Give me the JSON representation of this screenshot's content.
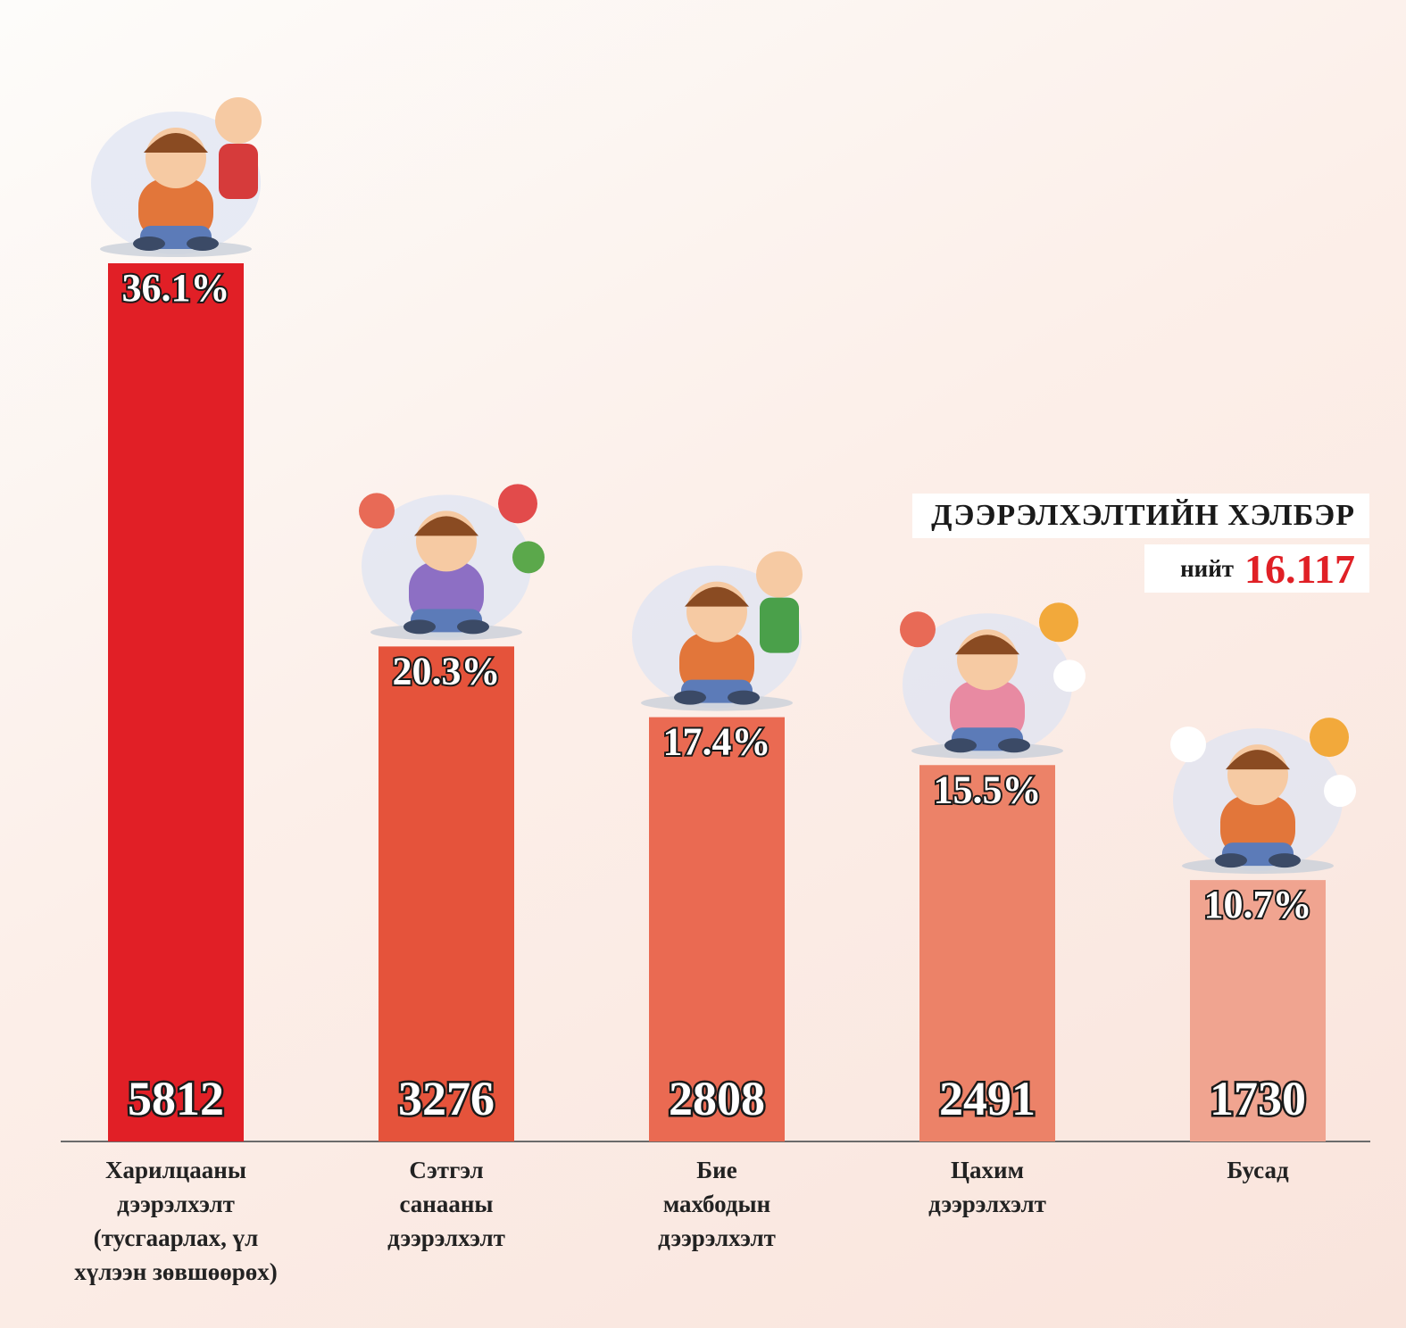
{
  "chart_data": {
    "type": "bar",
    "title": "ДЭЭРЭЛХЭЛТИЙН ХЭЛБЭР",
    "total_label": "нийт",
    "total_value": "16.117",
    "categories": [
      [
        "Харилцааны",
        "дээрэлхэлт",
        "(тусгаарлах, үл",
        "хүлээн зөвшөөрөх)"
      ],
      [
        "Сэтгэл",
        "санааны",
        "дээрэлхэлт"
      ],
      [
        "Бие",
        "махбодын",
        "дээрэлхэлт"
      ],
      [
        "Цахим",
        "дээрэлхэлт"
      ],
      [
        "Бусад"
      ]
    ],
    "values": [
      5812,
      3276,
      2808,
      2491,
      1730
    ],
    "percent_labels": [
      "36.1%",
      "20.3%",
      "17.4%",
      "15.5%",
      "10.7%"
    ],
    "colors": [
      "#e11f26",
      "#e5533b",
      "#ea6a52",
      "#ec8268",
      "#f0a490"
    ],
    "ylim": [
      0,
      5812
    ],
    "grid": false,
    "illustrations": [
      "isolated-child-icon",
      "emotional-abuse-icon",
      "physical-fight-icon",
      "cyber-bullying-icon",
      "other-bullying-icon"
    ]
  }
}
